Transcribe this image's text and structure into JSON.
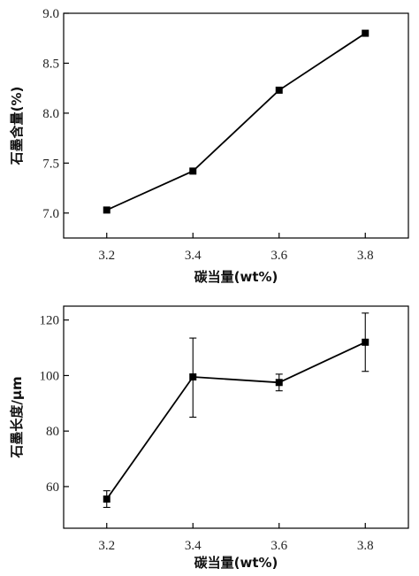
{
  "chart_data": [
    {
      "type": "line",
      "xlabel": "碳当量(wt%)",
      "ylabel": "石墨含量(%)",
      "xlim": [
        3.1,
        3.9
      ],
      "ylim": [
        6.75,
        9.0
      ],
      "xticks": [
        "3.2",
        "3.4",
        "3.6",
        "3.8"
      ],
      "yticks": [
        "7.0",
        "7.5",
        "8.0",
        "8.5",
        "9.0"
      ],
      "x": [
        3.2,
        3.4,
        3.6,
        3.8
      ],
      "series": [
        {
          "values": [
            7.03,
            7.42,
            8.23,
            8.8
          ]
        }
      ],
      "marker": "square",
      "color": "#000000"
    },
    {
      "type": "line",
      "xlabel": "碳当量(wt%)",
      "ylabel": "石墨长度/μm",
      "xlim": [
        3.1,
        3.9
      ],
      "ylim": [
        45,
        125
      ],
      "xticks": [
        "3.2",
        "3.4",
        "3.6",
        "3.8"
      ],
      "yticks": [
        "60",
        "80",
        "100",
        "120"
      ],
      "x": [
        3.2,
        3.4,
        3.6,
        3.8
      ],
      "series": [
        {
          "values": [
            55.5,
            99.5,
            97.5,
            112.0
          ],
          "error_low": [
            3.0,
            14.5,
            3.0,
            10.5
          ],
          "error_high": [
            3.0,
            14.0,
            3.0,
            10.5
          ]
        }
      ],
      "marker": "square",
      "color": "#000000"
    }
  ]
}
